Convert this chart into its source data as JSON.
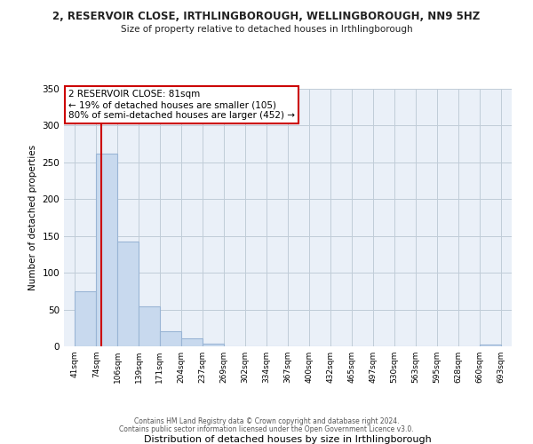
{
  "title": "2, RESERVOIR CLOSE, IRTHLINGBOROUGH, WELLINGBOROUGH, NN9 5HZ",
  "subtitle": "Size of property relative to detached houses in Irthlingborough",
  "xlabel": "Distribution of detached houses by size in Irthlingborough",
  "ylabel": "Number of detached properties",
  "bar_edges": [
    41,
    74,
    106,
    139,
    171,
    204,
    237,
    269,
    302,
    334,
    367,
    400,
    432,
    465,
    497,
    530,
    563,
    595,
    628,
    660,
    693
  ],
  "bar_heights": [
    75,
    262,
    142,
    54,
    20,
    11,
    4,
    0,
    0,
    0,
    0,
    0,
    0,
    0,
    0,
    0,
    0,
    0,
    0,
    3
  ],
  "bar_fill_color": "#c8d9ee",
  "bar_edge_color": "#9ab5d5",
  "property_value": 81,
  "vline_color": "#cc0000",
  "ylim": [
    0,
    350
  ],
  "yticks": [
    0,
    50,
    100,
    150,
    200,
    250,
    300,
    350
  ],
  "annotation_text": "2 RESERVOIR CLOSE: 81sqm\n← 19% of detached houses are smaller (105)\n80% of semi-detached houses are larger (452) →",
  "annotation_box_color": "#ffffff",
  "annotation_box_edge": "#cc0000",
  "footnote1": "Contains HM Land Registry data © Crown copyright and database right 2024.",
  "footnote2": "Contains public sector information licensed under the Open Government Licence v3.0.",
  "tick_labels": [
    "41sqm",
    "74sqm",
    "106sqm",
    "139sqm",
    "171sqm",
    "204sqm",
    "237sqm",
    "269sqm",
    "302sqm",
    "334sqm",
    "367sqm",
    "400sqm",
    "432sqm",
    "465sqm",
    "497sqm",
    "530sqm",
    "563sqm",
    "595sqm",
    "628sqm",
    "660sqm",
    "693sqm"
  ],
  "background_color": "#ffffff",
  "plot_bg_color": "#eaf0f8",
  "grid_color": "#c0ccd8"
}
